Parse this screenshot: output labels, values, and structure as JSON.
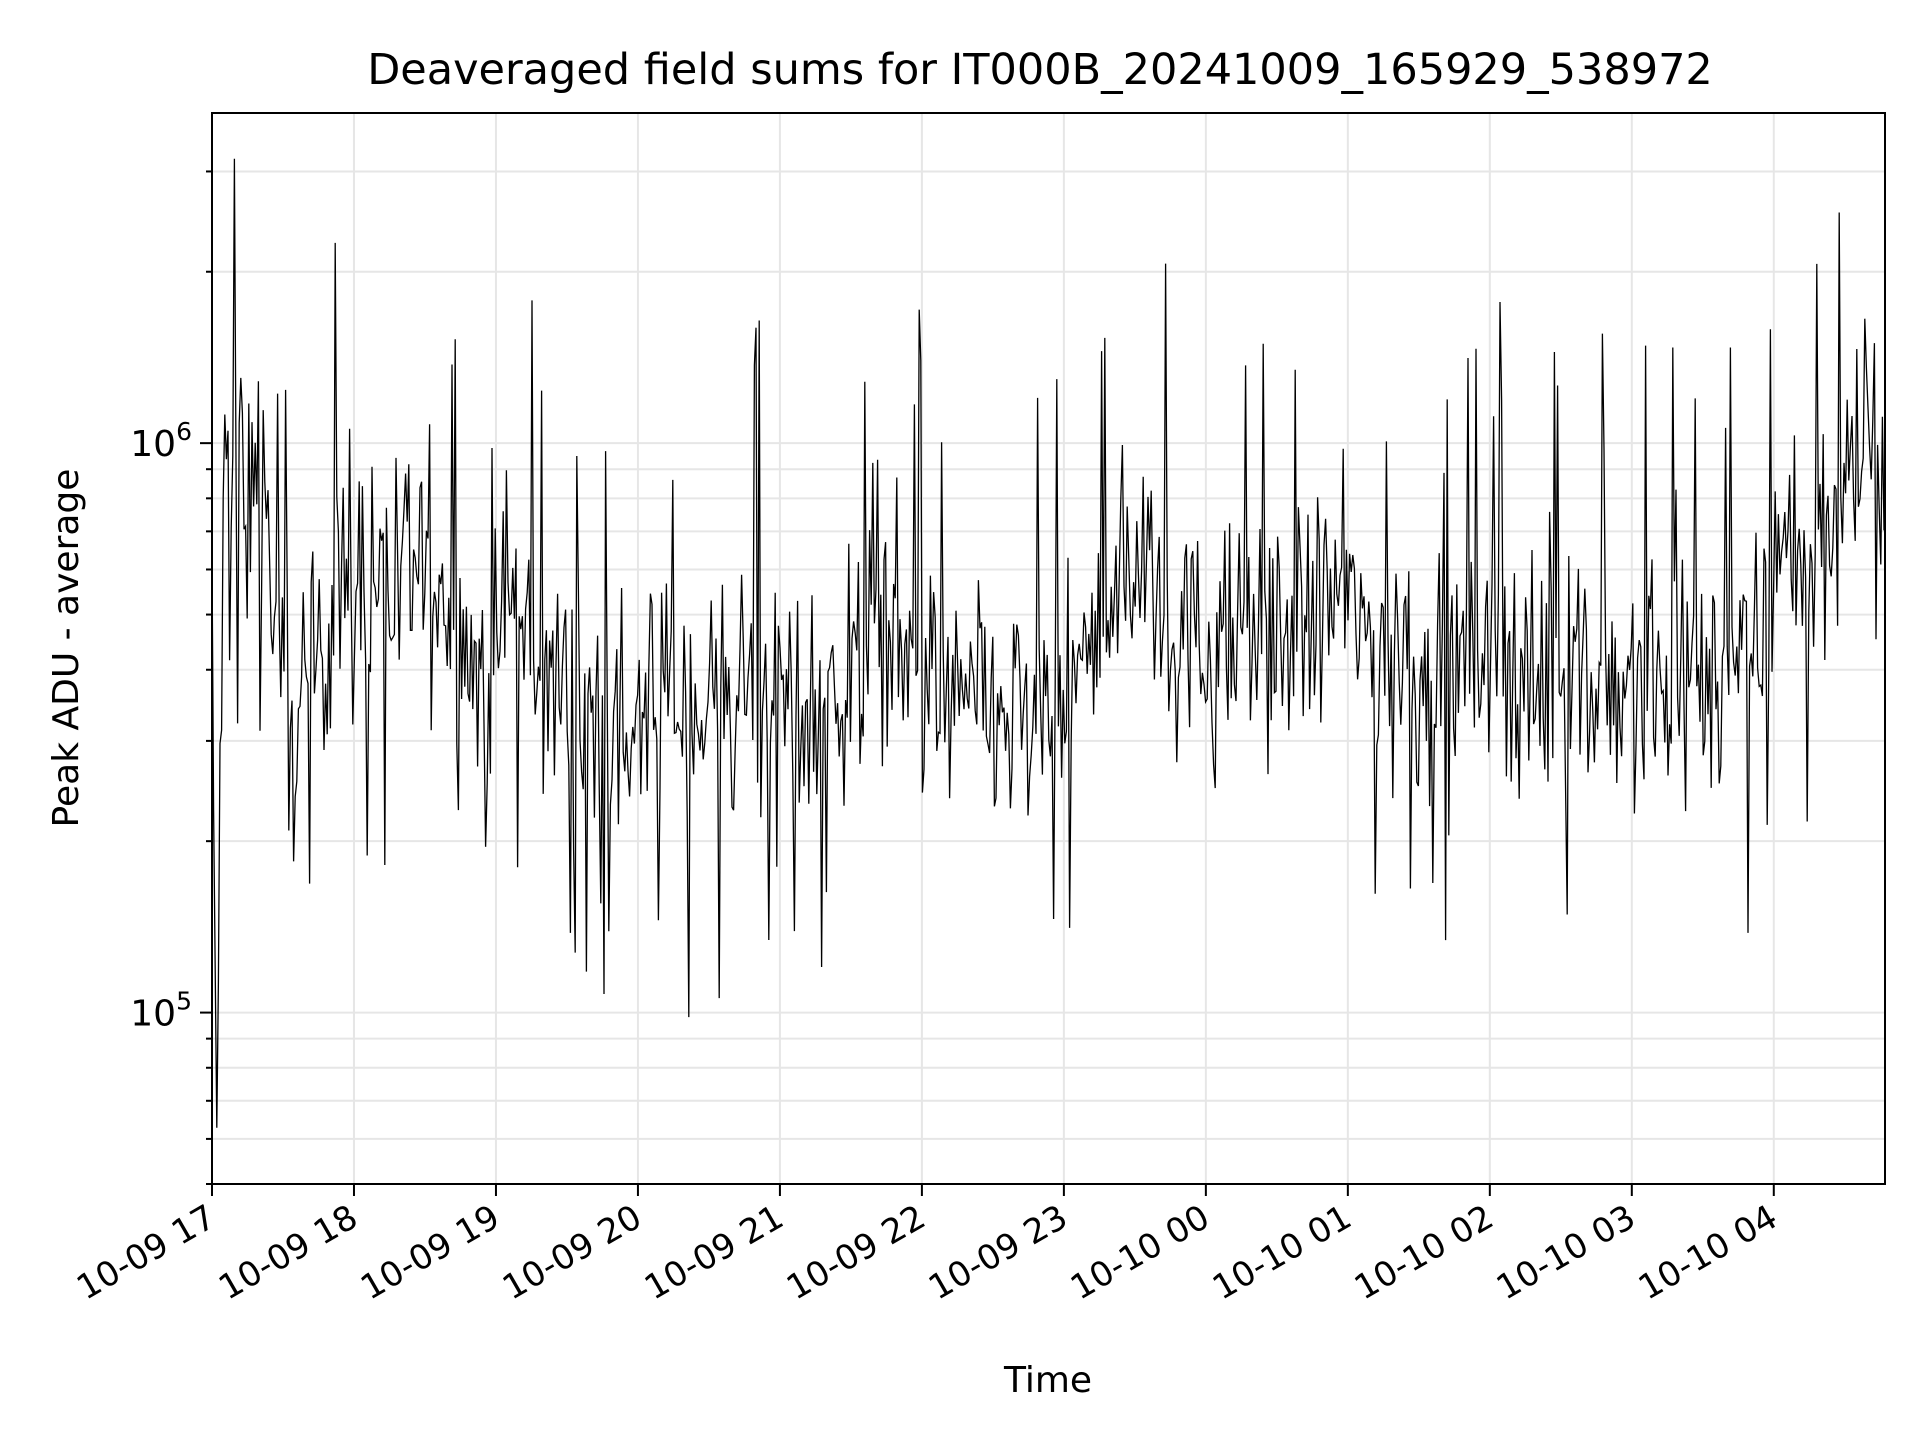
{
  "chart_data": {
    "type": "line",
    "title": "Deaveraged field sums for IT000B_20241009_165929_538972",
    "xlabel": "Time",
    "ylabel": "Peak ADU - average",
    "y_scale": "log",
    "ylim": [
      50000,
      3800000
    ],
    "xlim": [
      "2024-10-09 17:00",
      "2024-10-10 04:47"
    ],
    "grid": true,
    "series_color": "#000000",
    "x_ticks": [
      {
        "value": "2024-10-09 17:00",
        "label": "10-09 17"
      },
      {
        "value": "2024-10-09 18:00",
        "label": "10-09 18"
      },
      {
        "value": "2024-10-09 19:00",
        "label": "10-09 19"
      },
      {
        "value": "2024-10-09 20:00",
        "label": "10-09 20"
      },
      {
        "value": "2024-10-09 21:00",
        "label": "10-09 21"
      },
      {
        "value": "2024-10-09 22:00",
        "label": "10-09 22"
      },
      {
        "value": "2024-10-09 23:00",
        "label": "10-09 23"
      },
      {
        "value": "2024-10-10 00:00",
        "label": "10-10 00"
      },
      {
        "value": "2024-10-10 01:00",
        "label": "10-10 01"
      },
      {
        "value": "2024-10-10 02:00",
        "label": "10-10 02"
      },
      {
        "value": "2024-10-10 03:00",
        "label": "10-10 03"
      },
      {
        "value": "2024-10-10 04:00",
        "label": "10-10 04"
      }
    ],
    "y_ticks": [
      {
        "value": 100000,
        "base": "10",
        "exp": "5"
      },
      {
        "value": 1000000,
        "base": "10",
        "exp": "6"
      }
    ],
    "series": [
      {
        "x": [
          "2024-10-09 17:00",
          "2024-10-09 17:01",
          "2024-10-09 17:02",
          "2024-10-09 17:05",
          "2024-10-09 17:08",
          "2024-10-09 17:12",
          "2024-10-09 17:15",
          "2024-10-09 17:18",
          "2024-10-09 17:20",
          "2024-10-09 17:22",
          "2024-10-09 17:28",
          "2024-10-09 17:35",
          "2024-10-09 17:40",
          "2024-10-09 17:45",
          "2024-10-09 17:50",
          "2024-10-09 17:55",
          "2024-10-09 18:00",
          "2024-10-09 18:05",
          "2024-10-09 18:10",
          "2024-10-09 18:15",
          "2024-10-09 18:20",
          "2024-10-09 18:25",
          "2024-10-09 18:30",
          "2024-10-09 18:35",
          "2024-10-09 18:40",
          "2024-10-09 18:50",
          "2024-10-09 19:00",
          "2024-10-09 19:05",
          "2024-10-09 19:10",
          "2024-10-09 19:15",
          "2024-10-09 19:20",
          "2024-10-09 19:30",
          "2024-10-09 19:40",
          "2024-10-09 19:50",
          "2024-10-09 20:00",
          "2024-10-09 20:10",
          "2024-10-09 20:20",
          "2024-10-09 20:30",
          "2024-10-09 20:40",
          "2024-10-09 20:50",
          "2024-10-09 21:00",
          "2024-10-09 21:20",
          "2024-10-09 21:35",
          "2024-10-09 21:40",
          "2024-10-09 21:45",
          "2024-10-09 21:50",
          "2024-10-09 22:00",
          "2024-10-09 22:15",
          "2024-10-09 22:30",
          "2024-10-09 22:45",
          "2024-10-09 23:00",
          "2024-10-09 23:10",
          "2024-10-09 23:20",
          "2024-10-09 23:30",
          "2024-10-09 23:40",
          "2024-10-09 23:50",
          "2024-10-10 00:00",
          "2024-10-10 00:15",
          "2024-10-10 00:30",
          "2024-10-10 00:45",
          "2024-10-10 00:55",
          "2024-10-10 01:00",
          "2024-10-10 01:15",
          "2024-10-10 01:30",
          "2024-10-10 01:45",
          "2024-10-10 01:55",
          "2024-10-10 02:00",
          "2024-10-10 02:10",
          "2024-10-10 02:20",
          "2024-10-10 02:30",
          "2024-10-10 02:45",
          "2024-10-10 03:00",
          "2024-10-10 03:15",
          "2024-10-10 03:30",
          "2024-10-10 03:45",
          "2024-10-10 03:55",
          "2024-10-10 04:00",
          "2024-10-10 04:05",
          "2024-10-10 04:15",
          "2024-10-10 04:25",
          "2024-10-10 04:35",
          "2024-10-10 04:45"
        ],
        "values": [
          600000,
          120000,
          70000,
          800000,
          1000000,
          900000,
          700000,
          1100000,
          900000,
          800000,
          400000,
          300000,
          330000,
          450000,
          500000,
          600000,
          520000,
          600000,
          700000,
          550000,
          500000,
          600000,
          600000,
          650000,
          500000,
          400000,
          430000,
          550000,
          500000,
          420000,
          380000,
          380000,
          330000,
          300000,
          330000,
          350000,
          330000,
          350000,
          380000,
          370000,
          380000,
          350000,
          420000,
          600000,
          550000,
          450000,
          380000,
          350000,
          330000,
          320000,
          350000,
          400000,
          550000,
          650000,
          550000,
          450000,
          420000,
          450000,
          500000,
          480000,
          550000,
          520000,
          430000,
          400000,
          380000,
          420000,
          450000,
          400000,
          380000,
          400000,
          370000,
          380000,
          360000,
          400000,
          400000,
          450000,
          650000,
          700000,
          600000,
          750000,
          900000,
          950000
        ]
      }
    ]
  }
}
